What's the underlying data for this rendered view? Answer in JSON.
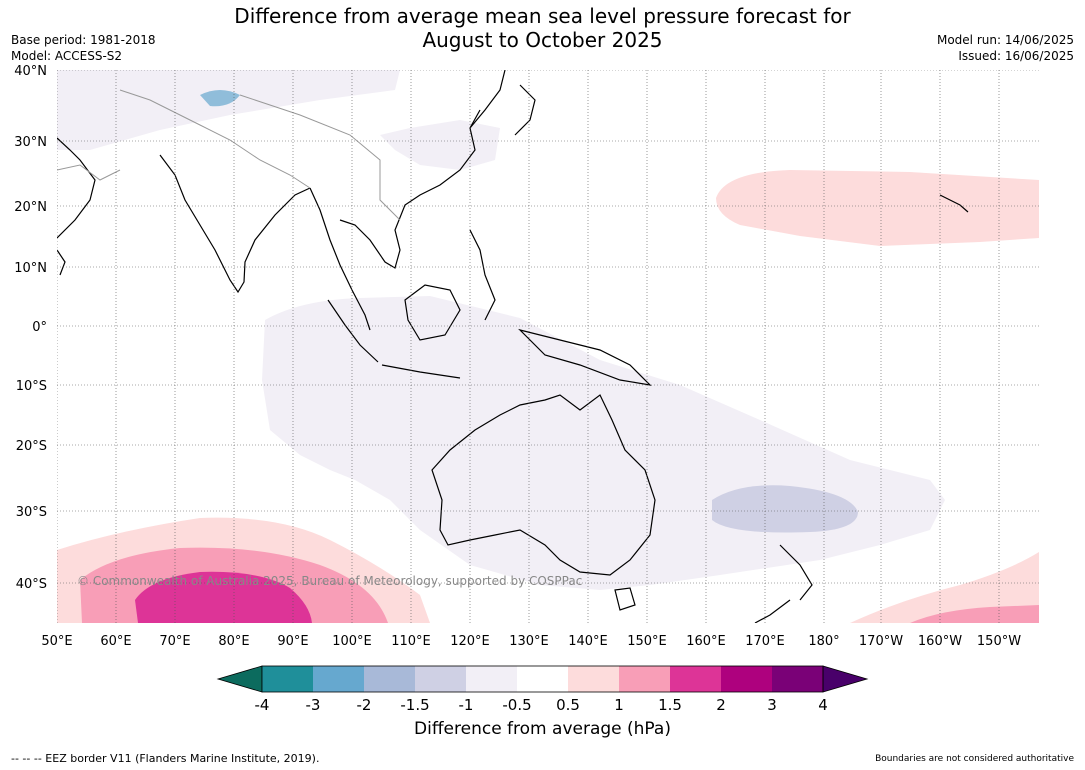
{
  "title_line1": "Difference from average mean sea level pressure forecast for",
  "title_line2": "August to October 2025",
  "meta_left": [
    "Base period: 1981-2018",
    "Model: ACCESS-S2"
  ],
  "meta_right": [
    "Model run: 14/06/2025",
    "Issued: 16/06/2025"
  ],
  "lat_labels": [
    "40°N",
    "30°N",
    "20°N",
    "10°N",
    "0°",
    "10°S",
    "20°S",
    "30°S",
    "40°S"
  ],
  "lon_labels": [
    "50°E",
    "60°E",
    "70°E",
    "80°E",
    "90°E",
    "100°E",
    "110°E",
    "120°E",
    "130°E",
    "140°E",
    "150°E",
    "160°E",
    "170°E",
    "180°",
    "170°W",
    "160°W",
    "150°W"
  ],
  "copyright": "© Commonwealth of Australia 2025, Bureau of Meteorology, supported by COSPPac",
  "colorbar": {
    "ticks": [
      "-4",
      "-3",
      "-2",
      "-1.5",
      "-1",
      "-0.5",
      "0.5",
      "1",
      "1.5",
      "2",
      "3",
      "4"
    ],
    "colors": [
      "#0c6b5e",
      "#1f8f9a",
      "#66a8cf",
      "#a8b9d8",
      "#cfd0e4",
      "#f2eff6",
      "#ffffff",
      "#fddcdc",
      "#f89eb7",
      "#dd3497",
      "#ae017e",
      "#7a0177",
      "#49006a"
    ],
    "label": "Difference from average (hPa)"
  },
  "footer_left": "--  --  -- EEZ border V11 (Flanders Marine Institute, 2019).",
  "footer_right": "Boundaries are not considered authoritative"
}
